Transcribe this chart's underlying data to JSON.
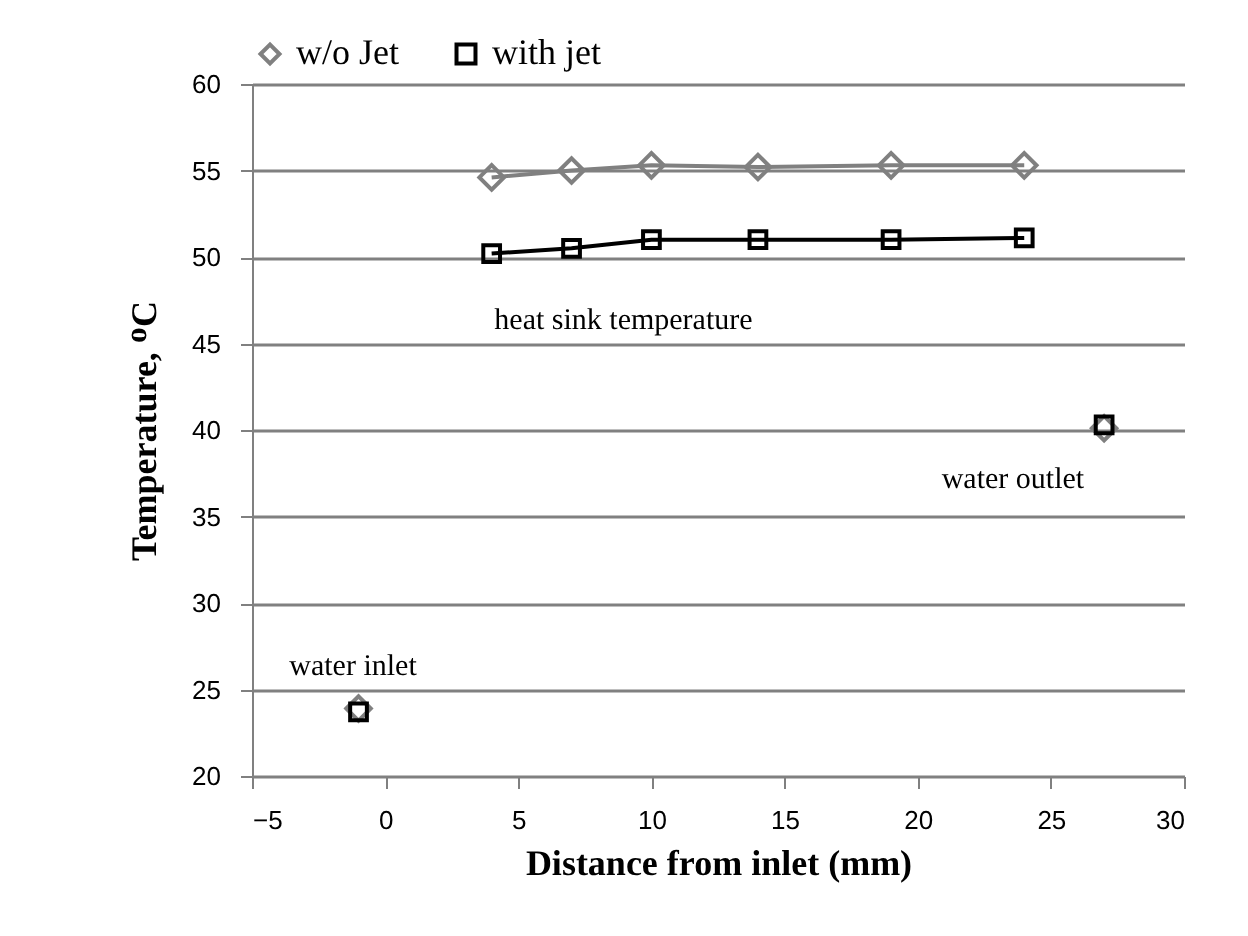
{
  "chart_data": {
    "type": "line",
    "xlabel": "Distance from inlet (mm)",
    "ylabel": "Temperature, ᴼC",
    "xlim": [
      -5,
      30
    ],
    "xticks": [
      -5,
      0,
      5,
      10,
      15,
      20,
      25,
      30
    ],
    "ylim": [
      20,
      60
    ],
    "yticks": [
      20,
      25,
      30,
      35,
      40,
      45,
      50,
      55,
      60
    ],
    "grid": "y",
    "legend": "top",
    "line_style": "solid",
    "x": [
      -1,
      null,
      4,
      7,
      10,
      14,
      19,
      24,
      null,
      27
    ],
    "series": [
      {
        "name": "w/o Jet",
        "color": "#808080",
        "marker": "diamond",
        "values": [
          23.9,
          null,
          54.6,
          55.0,
          55.3,
          55.2,
          55.3,
          55.3,
          null,
          40.1
        ]
      },
      {
        "name": "with jet",
        "color": "#000000",
        "marker": "square",
        "values": [
          23.7,
          null,
          50.2,
          50.5,
          51.0,
          51.0,
          51.0,
          51.1,
          null,
          40.3
        ]
      }
    ],
    "annotations": [
      "heat sink temperature",
      "water outlet",
      "water inlet"
    ]
  }
}
